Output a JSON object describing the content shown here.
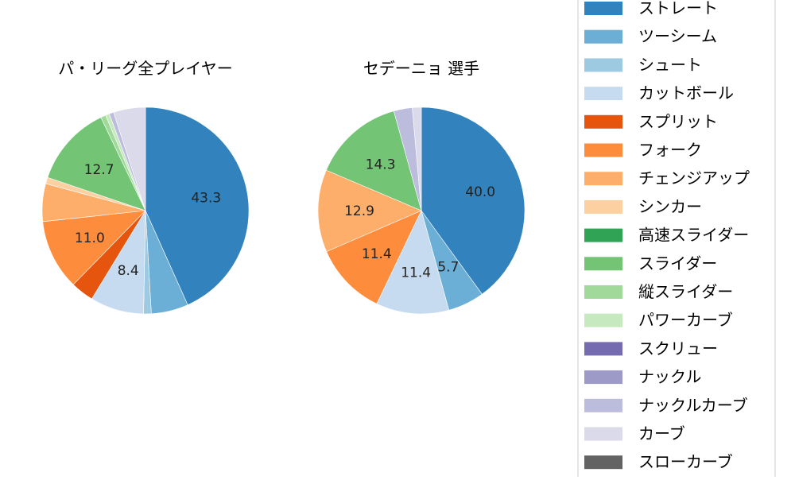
{
  "chart_data": [
    {
      "type": "pie",
      "title": "パ・リーグ全プレイヤー",
      "start_angle": 90,
      "direction": "clockwise",
      "slices": [
        {
          "name": "ストレート",
          "value": 43.3,
          "label": "43.3"
        },
        {
          "name": "ツーシーム",
          "value": 5.8,
          "label": null
        },
        {
          "name": "シュート",
          "value": 1.2,
          "label": null
        },
        {
          "name": "カットボール",
          "value": 8.4,
          "label": "8.4"
        },
        {
          "name": "スプリット",
          "value": 3.6,
          "label": null
        },
        {
          "name": "フォーク",
          "value": 11.0,
          "label": "11.0"
        },
        {
          "name": "チェンジアップ",
          "value": 5.9,
          "label": null
        },
        {
          "name": "シンカー",
          "value": 1.0,
          "label": null
        },
        {
          "name": "高速スライダー",
          "value": 0,
          "label": null
        },
        {
          "name": "スライダー",
          "value": 12.7,
          "label": "12.7"
        },
        {
          "name": "縦スライダー",
          "value": 0.8,
          "label": null
        },
        {
          "name": "パワーカーブ",
          "value": 0.6,
          "label": null
        },
        {
          "name": "スクリュー",
          "value": 0,
          "label": null
        },
        {
          "name": "ナックル",
          "value": 0,
          "label": null
        },
        {
          "name": "ナックルカーブ",
          "value": 0.7,
          "label": null
        },
        {
          "name": "カーブ",
          "value": 5.0,
          "label": null
        },
        {
          "name": "スローカーブ",
          "value": 0,
          "label": null
        }
      ]
    },
    {
      "type": "pie",
      "title": "セデーニョ  選手",
      "start_angle": 90,
      "direction": "clockwise",
      "slices": [
        {
          "name": "ストレート",
          "value": 40.0,
          "label": "40.0"
        },
        {
          "name": "ツーシーム",
          "value": 5.7,
          "label": "5.7"
        },
        {
          "name": "カットボール",
          "value": 11.4,
          "label": "11.4"
        },
        {
          "name": "フォーク",
          "value": 11.4,
          "label": "11.4"
        },
        {
          "name": "チェンジアップ",
          "value": 12.9,
          "label": "12.9"
        },
        {
          "name": "スライダー",
          "value": 14.3,
          "label": "14.3"
        },
        {
          "name": "ナックルカーブ",
          "value": 2.9,
          "label": null
        },
        {
          "name": "カーブ",
          "value": 1.4,
          "label": null
        }
      ]
    }
  ],
  "legend": {
    "placement": "right",
    "entries": [
      {
        "name": "ストレート",
        "color": "#3182bd"
      },
      {
        "name": "ツーシーム",
        "color": "#6baed6"
      },
      {
        "name": "シュート",
        "color": "#9ecae1"
      },
      {
        "name": "カットボール",
        "color": "#c6dbef"
      },
      {
        "name": "スプリット",
        "color": "#e6550d"
      },
      {
        "name": "フォーク",
        "color": "#fd8d3c"
      },
      {
        "name": "チェンジアップ",
        "color": "#fdae6b"
      },
      {
        "name": "シンカー",
        "color": "#fdd0a2"
      },
      {
        "name": "高速スライダー",
        "color": "#31a354"
      },
      {
        "name": "スライダー",
        "color": "#74c476"
      },
      {
        "name": "縦スライダー",
        "color": "#a1d99b"
      },
      {
        "name": "パワーカーブ",
        "color": "#c7e9c0"
      },
      {
        "name": "スクリュー",
        "color": "#756bb1"
      },
      {
        "name": "ナックル",
        "color": "#9e9ac8"
      },
      {
        "name": "ナックルカーブ",
        "color": "#bcbddc"
      },
      {
        "name": "カーブ",
        "color": "#dadaeb"
      },
      {
        "name": "スローカーブ",
        "color": "#636363"
      }
    ]
  }
}
